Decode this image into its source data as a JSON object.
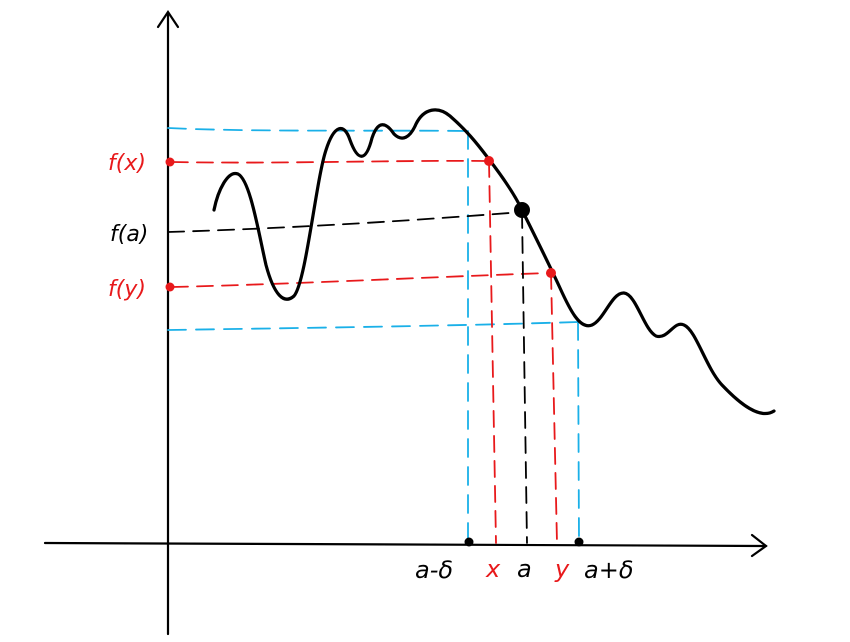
{
  "labels": {
    "f_x": "f(x)",
    "f_a": "f(a)",
    "f_y": "f(y)",
    "a_minus_delta": "a-δ",
    "x": "x",
    "a": "a",
    "y": "y",
    "a_plus_delta": "a+δ"
  },
  "colors": {
    "curve": "#000000",
    "axis": "#000000",
    "delta_band": "#1ab0e8",
    "xy_guides": "#e8191b",
    "a_guides": "#000000"
  }
}
